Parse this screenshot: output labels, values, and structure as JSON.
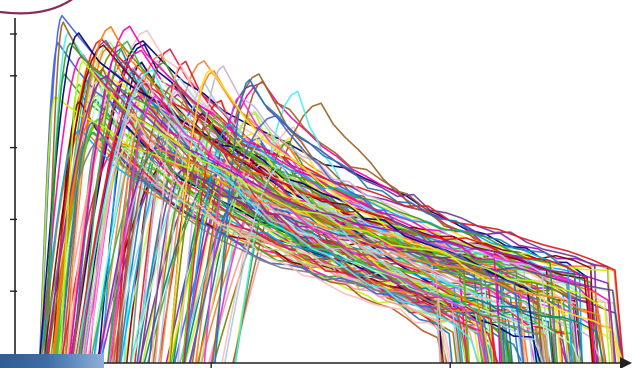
{
  "chart_data": {
    "type": "line",
    "title": "",
    "xlabel": "",
    "ylabel": "",
    "grid": false,
    "legend": "none",
    "xlim": [
      0,
      100
    ],
    "ylim": [
      0,
      100
    ],
    "y_ticks": [
      20,
      40,
      60,
      80,
      100
    ],
    "x_ticks": [
      32,
      71
    ],
    "series_count": 160,
    "envelope": {
      "start_x_range": [
        4,
        36
      ],
      "peak_height_range": [
        62,
        99
      ],
      "peak_offset_range": [
        2,
        12
      ],
      "end_x_range": [
        68,
        98
      ],
      "tail_height_range": [
        6,
        28
      ]
    },
    "palette": [
      "#e6194b",
      "#3cb44b",
      "#ffe119",
      "#4363d8",
      "#f58231",
      "#911eb4",
      "#46f0f0",
      "#f032e6",
      "#bcf60c",
      "#fabebe",
      "#008080",
      "#9a6324",
      "#800000",
      "#aaffc3",
      "#808000",
      "#000075",
      "#808080",
      "#ff00aa",
      "#00aaff",
      "#55cc00",
      "#ff7700",
      "#6a3d9a",
      "#1f78b4",
      "#33a02c",
      "#b15928",
      "#e31a1c",
      "#a6cee3",
      "#b2df8a",
      "#fb9a99",
      "#cab2d6"
    ]
  }
}
